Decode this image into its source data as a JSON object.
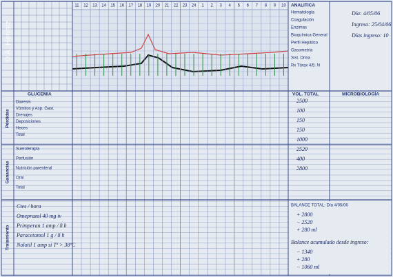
{
  "watermark": "© A. Herráiz",
  "hours": [
    "11",
    "12",
    "13",
    "14",
    "15",
    "16",
    "17",
    "18",
    "19",
    "20",
    "21",
    "22",
    "23",
    "24",
    "1",
    "2",
    "3",
    "4",
    "5",
    "6",
    "7",
    "8",
    "9",
    "10"
  ],
  "analitica": {
    "title": "ANALITICA",
    "items": [
      "Hematología",
      "Coagulación",
      "Enzimas",
      "Bioquímica General",
      "Perfil Hepático",
      "Gasometría",
      "Sist. Orina",
      "Rx Tórax 4/5: N"
    ]
  },
  "admission": {
    "day": "Día: 4/05/06",
    "ingreso": "Ingreso: 25/04/06",
    "days": "Días ingreso: 10"
  },
  "glucemia": "GLUCEMIA",
  "losses": {
    "label": "Pérdidas",
    "rows": [
      "Diuresis",
      "Vómitos y Asp. Gast.",
      "Drenajes",
      "Deposiciones",
      "Heces",
      "Total"
    ]
  },
  "gains": {
    "label": "Ganancias",
    "rows": [
      "Sueroterapia",
      "Perfusión",
      "Nutrición parenteral",
      "Oral",
      "Total"
    ]
  },
  "volume": {
    "title": "VOL. TOTAL",
    "values": [
      "2500",
      "100",
      "150",
      "150",
      "1000",
      "2520",
      "400",
      "2800"
    ]
  },
  "microbiology": "MICROBIOLOGÍA",
  "treatment": {
    "label": "Tratamiento",
    "rows": [
      "Ctes / hora",
      "Omeprazol 40 mg iv",
      "Primperan 1 amp / 8 h",
      "Paracetamol 1 g / 8 h",
      "Nolotil 1 amp si Tª > 38ºC"
    ]
  },
  "balance": {
    "title": "BALANCE TOTAL: Día 4/05/06",
    "lines": [
      "+ 2800",
      "− 2520",
      "+ 280 ml"
    ],
    "acc_title": "Balance acumulado desde ingreso:",
    "acc_lines": [
      "− 1340",
      "+ 280",
      "− 1060 ml"
    ]
  }
}
